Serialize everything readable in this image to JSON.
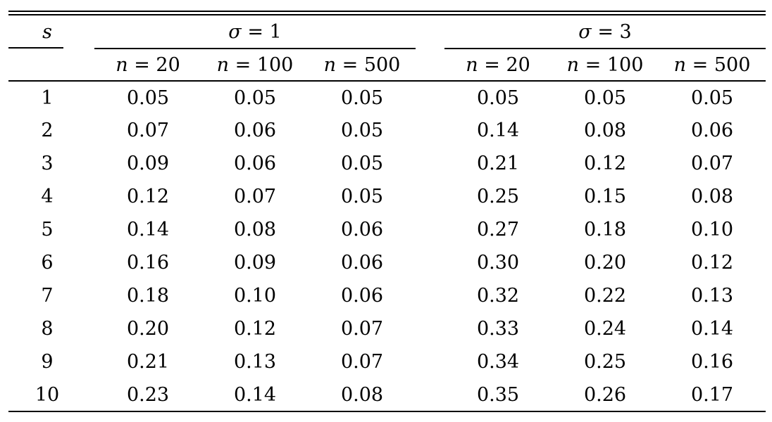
{
  "chart_data": {
    "type": "table",
    "row_var": "s",
    "equals": "=",
    "groups": [
      {
        "var": "σ",
        "val": "1",
        "cols": [
          {
            "var": "n",
            "val": "20"
          },
          {
            "var": "n",
            "val": "100"
          },
          {
            "var": "n",
            "val": "500"
          }
        ]
      },
      {
        "var": "σ",
        "val": "3",
        "cols": [
          {
            "var": "n",
            "val": "20"
          },
          {
            "var": "n",
            "val": "100"
          },
          {
            "var": "n",
            "val": "500"
          }
        ]
      }
    ],
    "rows": [
      {
        "s": "1",
        "values": [
          "0.05",
          "0.05",
          "0.05",
          "0.05",
          "0.05",
          "0.05"
        ]
      },
      {
        "s": "2",
        "values": [
          "0.07",
          "0.06",
          "0.05",
          "0.14",
          "0.08",
          "0.06"
        ]
      },
      {
        "s": "3",
        "values": [
          "0.09",
          "0.06",
          "0.05",
          "0.21",
          "0.12",
          "0.07"
        ]
      },
      {
        "s": "4",
        "values": [
          "0.12",
          "0.07",
          "0.05",
          "0.25",
          "0.15",
          "0.08"
        ]
      },
      {
        "s": "5",
        "values": [
          "0.14",
          "0.08",
          "0.06",
          "0.27",
          "0.18",
          "0.10"
        ]
      },
      {
        "s": "6",
        "values": [
          "0.16",
          "0.09",
          "0.06",
          "0.30",
          "0.20",
          "0.12"
        ]
      },
      {
        "s": "7",
        "values": [
          "0.18",
          "0.10",
          "0.06",
          "0.32",
          "0.22",
          "0.13"
        ]
      },
      {
        "s": "8",
        "values": [
          "0.20",
          "0.12",
          "0.07",
          "0.33",
          "0.24",
          "0.14"
        ]
      },
      {
        "s": "9",
        "values": [
          "0.21",
          "0.13",
          "0.07",
          "0.34",
          "0.25",
          "0.16"
        ]
      },
      {
        "s": "10",
        "values": [
          "0.23",
          "0.14",
          "0.08",
          "0.35",
          "0.26",
          "0.17"
        ]
      }
    ]
  }
}
